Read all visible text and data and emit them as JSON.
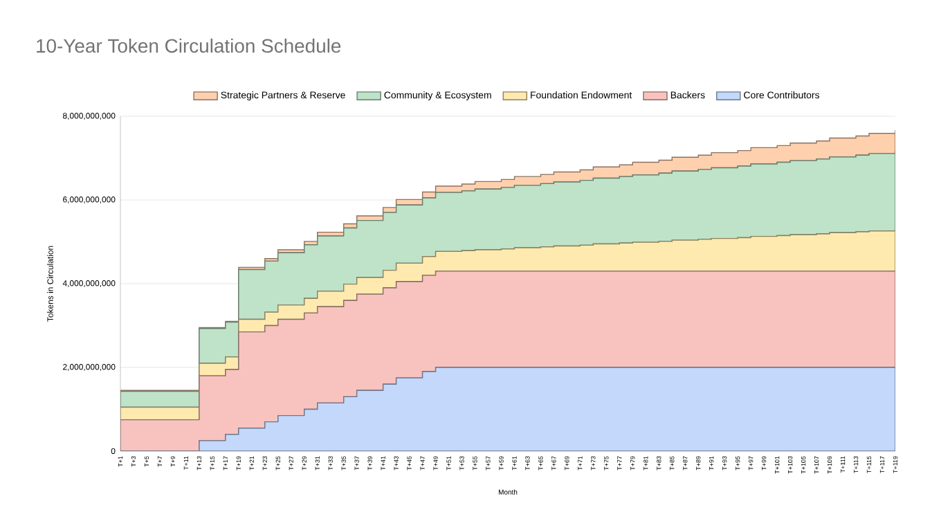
{
  "chart_data": {
    "type": "area",
    "title": "10-Year Token Circulation Schedule",
    "xlabel": "Month",
    "ylabel": "Tokens in Circulation",
    "stacked": true,
    "legend": "top",
    "grid": "y",
    "categories": [
      "T+1",
      "T+3",
      "T+5",
      "T+7",
      "T+9",
      "T+11",
      "T+13",
      "T+15",
      "T+17",
      "T+19",
      "T+21",
      "T+23",
      "T+25",
      "T+27",
      "T+29",
      "T+31",
      "T+33",
      "T+35",
      "T+37",
      "T+39",
      "T+41",
      "T+43",
      "T+45",
      "T+47",
      "T+49",
      "T+51",
      "T+53",
      "T+55",
      "T+57",
      "T+59",
      "T+61",
      "T+63",
      "T+65",
      "T+67",
      "T+69",
      "T+71",
      "T+73",
      "T+75",
      "T+77",
      "T+79",
      "T+81",
      "T+83",
      "T+85",
      "T+87",
      "T+89",
      "T+91",
      "T+93",
      "T+95",
      "T+97",
      "T+99",
      "T+101",
      "T+103",
      "T+105",
      "T+107",
      "T+109",
      "T+111",
      "T+113",
      "T+115",
      "T+117",
      "T+119"
    ],
    "series": [
      {
        "name": "Core Contributors",
        "color": "#c3d8fb",
        "values": [
          0,
          0,
          0,
          0,
          0,
          0,
          250000000.0,
          250000000.0,
          400000000.0,
          550000000.0,
          550000000.0,
          700000000.0,
          850000000.0,
          850000000.0,
          1000000000.0,
          1150000000.0,
          1150000000.0,
          1300000000.0,
          1450000000.0,
          1450000000.0,
          1600000000.0,
          1750000000.0,
          1750000000.0,
          1900000000.0,
          2000000000.0,
          2000000000.0,
          2000000000.0,
          2000000000.0,
          2000000000.0,
          2000000000.0,
          2000000000.0,
          2000000000.0,
          2000000000.0,
          2000000000.0,
          2000000000.0,
          2000000000.0,
          2000000000.0,
          2000000000.0,
          2000000000.0,
          2000000000.0,
          2000000000.0,
          2000000000.0,
          2000000000.0,
          2000000000.0,
          2000000000.0,
          2000000000.0,
          2000000000.0,
          2000000000.0,
          2000000000.0,
          2000000000.0,
          2000000000.0,
          2000000000.0,
          2000000000.0,
          2000000000.0,
          2000000000.0,
          2000000000.0,
          2000000000.0,
          2000000000.0,
          2000000000.0,
          2000000000.0
        ]
      },
      {
        "name": "Backers",
        "color": "#f8c3be",
        "values": [
          750000000.0,
          750000000.0,
          750000000.0,
          750000000.0,
          750000000.0,
          750000000.0,
          1550000000.0,
          1550000000.0,
          1550000000.0,
          2300000000.0,
          2300000000.0,
          2300000000.0,
          2300000000.0,
          2300000000.0,
          2300000000.0,
          2300000000.0,
          2300000000.0,
          2300000000.0,
          2300000000.0,
          2300000000.0,
          2300000000.0,
          2300000000.0,
          2300000000.0,
          2300000000.0,
          2300000000.0,
          2300000000.0,
          2300000000.0,
          2300000000.0,
          2300000000.0,
          2300000000.0,
          2300000000.0,
          2300000000.0,
          2300000000.0,
          2300000000.0,
          2300000000.0,
          2300000000.0,
          2300000000.0,
          2300000000.0,
          2300000000.0,
          2300000000.0,
          2300000000.0,
          2300000000.0,
          2300000000.0,
          2300000000.0,
          2300000000.0,
          2300000000.0,
          2300000000.0,
          2300000000.0,
          2300000000.0,
          2300000000.0,
          2300000000.0,
          2300000000.0,
          2300000000.0,
          2300000000.0,
          2300000000.0,
          2300000000.0,
          2300000000.0,
          2300000000.0,
          2300000000.0,
          2300000000.0
        ]
      },
      {
        "name": "Foundation Endowment",
        "color": "#feeaaf",
        "values": [
          300000000.0,
          300000000.0,
          300000000.0,
          300000000.0,
          300000000.0,
          300000000.0,
          300000000.0,
          300000000.0,
          300000000.0,
          300000000.0,
          300000000.0,
          320000000.0,
          340000000.0,
          340000000.0,
          350000000.0,
          370000000.0,
          370000000.0,
          390000000.0,
          400000000.0,
          400000000.0,
          420000000.0,
          440000000.0,
          440000000.0,
          450000000.0,
          470000000.0,
          470000000.0,
          490000000.0,
          510000000.0,
          510000000.0,
          530000000.0,
          560000000.0,
          560000000.0,
          580000000.0,
          600000000.0,
          600000000.0,
          620000000.0,
          650000000.0,
          650000000.0,
          670000000.0,
          690000000.0,
          690000000.0,
          710000000.0,
          740000000.0,
          740000000.0,
          760000000.0,
          780000000.0,
          780000000.0,
          800000000.0,
          830000000.0,
          830000000.0,
          850000000.0,
          870000000.0,
          870000000.0,
          890000000.0,
          920000000.0,
          920000000.0,
          940000000.0,
          960000000.0,
          960000000.0,
          1000000000.0
        ]
      },
      {
        "name": "Community & Ecosystem",
        "color": "#bee3c8",
        "values": [
          380000000.0,
          380000000.0,
          380000000.0,
          380000000.0,
          380000000.0,
          380000000.0,
          830000000.0,
          830000000.0,
          830000000.0,
          1190000000.0,
          1190000000.0,
          1220000000.0,
          1250000000.0,
          1250000000.0,
          1280000000.0,
          1320000000.0,
          1320000000.0,
          1340000000.0,
          1360000000.0,
          1360000000.0,
          1380000000.0,
          1390000000.0,
          1390000000.0,
          1400000000.0,
          1410000000.0,
          1410000000.0,
          1430000000.0,
          1450000000.0,
          1450000000.0,
          1470000000.0,
          1490000000.0,
          1490000000.0,
          1510000000.0,
          1530000000.0,
          1530000000.0,
          1550000000.0,
          1570000000.0,
          1570000000.0,
          1590000000.0,
          1610000000.0,
          1610000000.0,
          1630000000.0,
          1650000000.0,
          1650000000.0,
          1670000000.0,
          1690000000.0,
          1690000000.0,
          1710000000.0,
          1730000000.0,
          1730000000.0,
          1750000000.0,
          1770000000.0,
          1770000000.0,
          1790000000.0,
          1810000000.0,
          1810000000.0,
          1830000000.0,
          1850000000.0,
          1850000000.0,
          1870000000.0
        ]
      },
      {
        "name": "Strategic Partners & Reserve",
        "color": "#ffd0ae",
        "values": [
          20000000.0,
          20000000.0,
          20000000.0,
          20000000.0,
          20000000.0,
          20000000.0,
          20000000.0,
          20000000.0,
          20000000.0,
          50000000.0,
          50000000.0,
          60000000.0,
          70000000.0,
          70000000.0,
          80000000.0,
          90000000.0,
          90000000.0,
          100000000.0,
          110000000.0,
          110000000.0,
          120000000.0,
          130000000.0,
          130000000.0,
          140000000.0,
          150000000.0,
          150000000.0,
          160000000.0,
          180000000.0,
          180000000.0,
          190000000.0,
          210000000.0,
          210000000.0,
          220000000.0,
          240000000.0,
          240000000.0,
          250000000.0,
          270000000.0,
          270000000.0,
          280000000.0,
          300000000.0,
          300000000.0,
          310000000.0,
          330000000.0,
          330000000.0,
          340000000.0,
          360000000.0,
          360000000.0,
          370000000.0,
          390000000.0,
          390000000.0,
          400000000.0,
          420000000.0,
          420000000.0,
          430000000.0,
          450000000.0,
          450000000.0,
          460000000.0,
          480000000.0,
          480000000.0,
          500000000.0
        ]
      }
    ],
    "ylim": [
      0,
      8000000000
    ],
    "yticks": [
      {
        "value": 0,
        "label": "0"
      },
      {
        "value": 2000000000,
        "label": "2,000,000,000"
      },
      {
        "value": 4000000000,
        "label": "4,000,000,000"
      },
      {
        "value": 6000000000,
        "label": "6,000,000,000"
      },
      {
        "value": 8000000000,
        "label": "8,000,000,000"
      }
    ]
  }
}
